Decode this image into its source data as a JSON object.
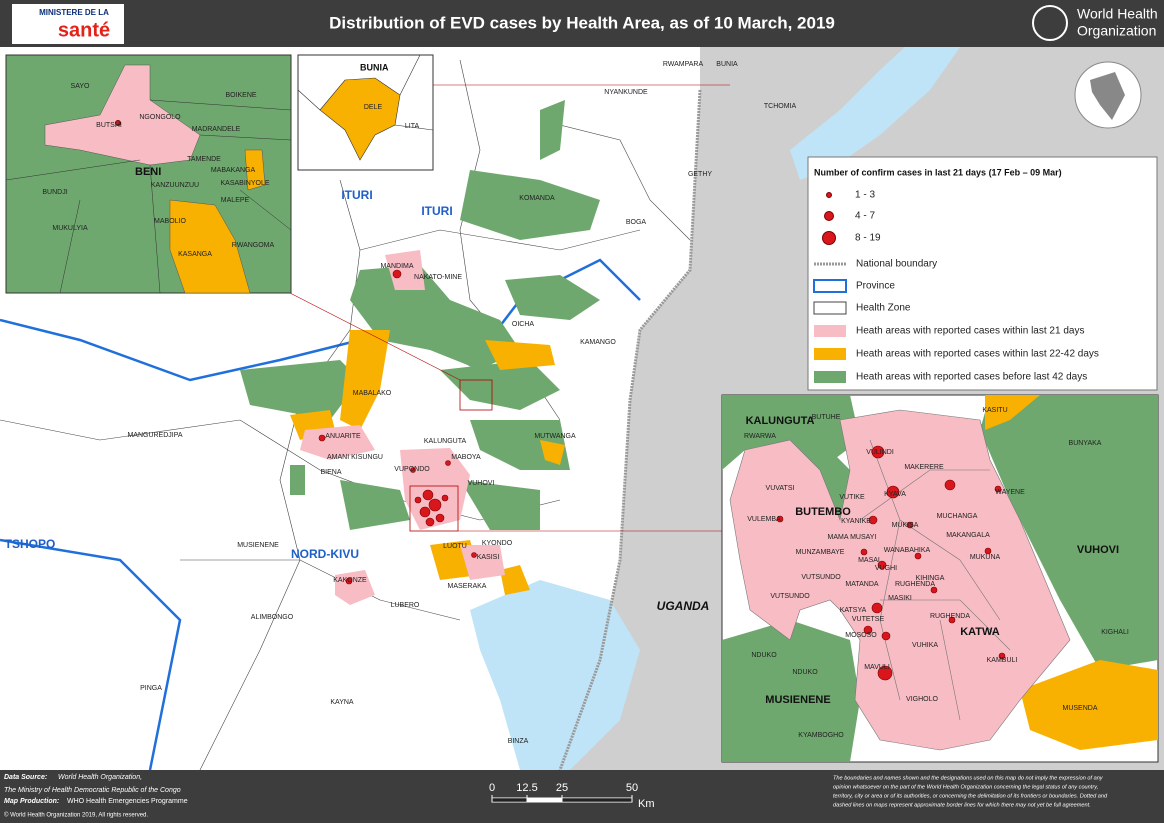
{
  "header": {
    "title": "Distribution of EVD cases by Health Area, as of 10 March, 2019",
    "ministry_top": "MINISTERE DE LA",
    "ministry_bottom": "santé",
    "who_line1": "World Health",
    "who_line2": "Organization"
  },
  "main_map": {
    "provinces": [
      "ITURI",
      "ITURI",
      "TSHOPO",
      "NORD-KIVU"
    ],
    "country": "UGANDA",
    "labels": [
      "NYANKUNDE",
      "RWAMPARA",
      "BUNIA",
      "TCHOMIA",
      "GETHY",
      "KOMANDA",
      "BOGA",
      "MANDIMA",
      "NAKATO-MINE",
      "OICHA",
      "KAMANGO",
      "MABALAKO",
      "MANGUREDJIPA",
      "ANUARITE",
      "KALUNGUTA",
      "MUTWANGA",
      "AMANI KISUNGU",
      "MABOYA",
      "VUPONDO",
      "BIENA",
      "VUHOVI",
      "MUSIENENE",
      "KYONDO",
      "LUOTU",
      "KASISI",
      "KAKONZE",
      "MASERAKA",
      "LUBERO",
      "ALIMBONGO",
      "PINGA",
      "KAYNA",
      "BINZA"
    ]
  },
  "inset_beni": {
    "zone": "BENI",
    "labels": [
      "SAYO",
      "BUTSHI",
      "NGONGOLO",
      "BOIKENE",
      "MADRANDELE",
      "TAMENDE",
      "MABAKANGA",
      "KASABINYOLE",
      "KANZUUNZUU",
      "BUNDJI",
      "MALEPE",
      "MABOLIO",
      "RWANGOMA",
      "MUKULYIA",
      "KASANGA"
    ]
  },
  "inset_bunia": {
    "zone": "BUNIA",
    "labels": [
      "DELE",
      "LITA"
    ]
  },
  "inset_butembo": {
    "zones": [
      "KALUNGUTA",
      "BUTEMBO",
      "VUHOVI",
      "KATWA",
      "MUSIENENE"
    ],
    "labels": [
      "BUTUHE",
      "RWARWA",
      "KASITU",
      "VULINDI",
      "MAKERERE",
      "BUNYAKA",
      "VUVATSI",
      "VUTIKE",
      "KYAVA",
      "WAYENE",
      "VULEMBA",
      "KYANIKE",
      "MUKISA",
      "MUCHANGA",
      "MAKANGALA",
      "MAMA MUSAYI",
      "WANABAHIKA",
      "MUKUNA",
      "MUNZAMBAYE",
      "MASAI",
      "VUGHI",
      "KIHINGA",
      "RUGHENDA",
      "VUTSUNDO",
      "MATANDA",
      "VUTSUNDO",
      "MASIKI",
      "KATSYA",
      "VUTETSE",
      "RUGHENDA",
      "KIGHALI",
      "MOSOSO",
      "VUHIKA",
      "NDUKO",
      "NDUKO",
      "KAMBULI",
      "MAVULI",
      "VIGHOLO",
      "MUSENDA",
      "KYAMBOGHO"
    ]
  },
  "legend": {
    "title": "Number of confirm cases in last 21 days (17 Feb – 09 Mar)",
    "items": [
      "1 - 3",
      "4 - 7",
      "8 - 19",
      "National boundary",
      "Province",
      "Health Zone",
      "Heath areas with reported cases within last 21 days",
      "Heath areas with reported cases within last 22-42 days",
      "Heath areas with reported cases before last 42 days"
    ]
  },
  "scale_bar": {
    "ticks": [
      0,
      12.5,
      25,
      50
    ],
    "unit": "Km"
  },
  "footer": {
    "source_label": "Data Source:",
    "source_line1": "World Health Organization,",
    "source_line2": "The Ministry of Health Democratic Republic of the Congo",
    "production_label": "Map Production:",
    "production_text": "WHO Health Emergencies Programme",
    "copyright": "© World Health Organization 2019, All rights reserved.",
    "disclaimer": [
      "The boundaries and names shown and the designations used on this map do not imply the expression of any",
      "opinion whatsoever on the part of the World Health Organization concerning the legal status of any country,",
      "territory, city or area or of its authorities, or concerning the delimitation of its frontiers or boundaries. Dotted and",
      "dashed lines on maps represent approximate border lines for which there may not yet be full agreement."
    ]
  }
}
